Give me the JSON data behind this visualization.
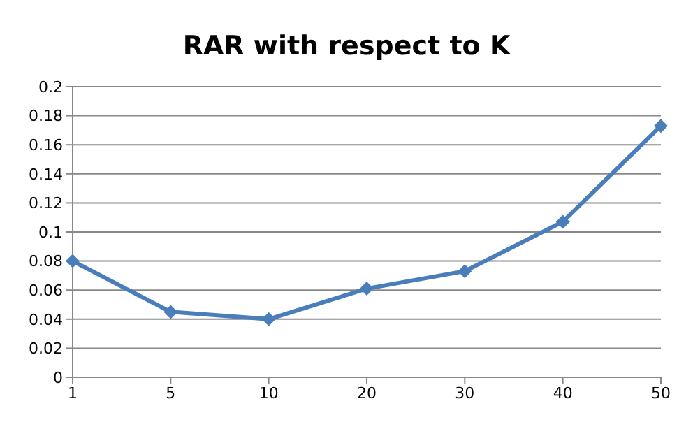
{
  "chart_data": {
    "type": "line",
    "title": "RAR with respect to K",
    "categories": [
      "1",
      "5",
      "10",
      "20",
      "30",
      "40",
      "50"
    ],
    "series": [
      {
        "color": "#4a7ebb",
        "values": [
          0.08,
          0.045,
          0.04,
          0.061,
          0.073,
          0.107,
          0.173
        ]
      }
    ],
    "ylim": [
      0,
      0.2
    ],
    "yticks": [
      0,
      0.02,
      0.04,
      0.06,
      0.08,
      0.1,
      0.12,
      0.14,
      0.16,
      0.18,
      0.2
    ],
    "grid": "y",
    "legend": false,
    "marker": "diamond",
    "line_style": "solid"
  }
}
